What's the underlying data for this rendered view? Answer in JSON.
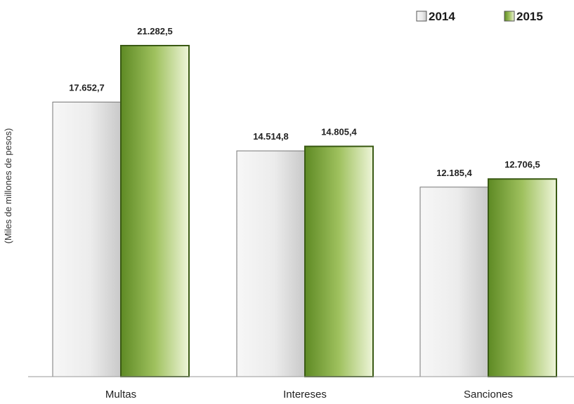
{
  "chart_data": {
    "type": "bar",
    "categories": [
      "Multas",
      "Intereses",
      "Sanciones"
    ],
    "series": [
      {
        "name": "2014",
        "values": [
          17652.7,
          14514.8,
          12185.4
        ],
        "labels": [
          "17.652,7",
          "14.514,8",
          "12.185,4"
        ],
        "color": "#e6e6e6"
      },
      {
        "name": "2015",
        "values": [
          21282.5,
          14805.4,
          12706.5
        ],
        "labels": [
          "21.282,5",
          "14.805,4",
          "12.706,5"
        ],
        "color": "#8db04a"
      }
    ],
    "ylabel": "(Miles de millones de pesos)",
    "xlabel": "",
    "ylim": [
      0,
      24000
    ],
    "grid": false,
    "legend_position": "top-right"
  }
}
